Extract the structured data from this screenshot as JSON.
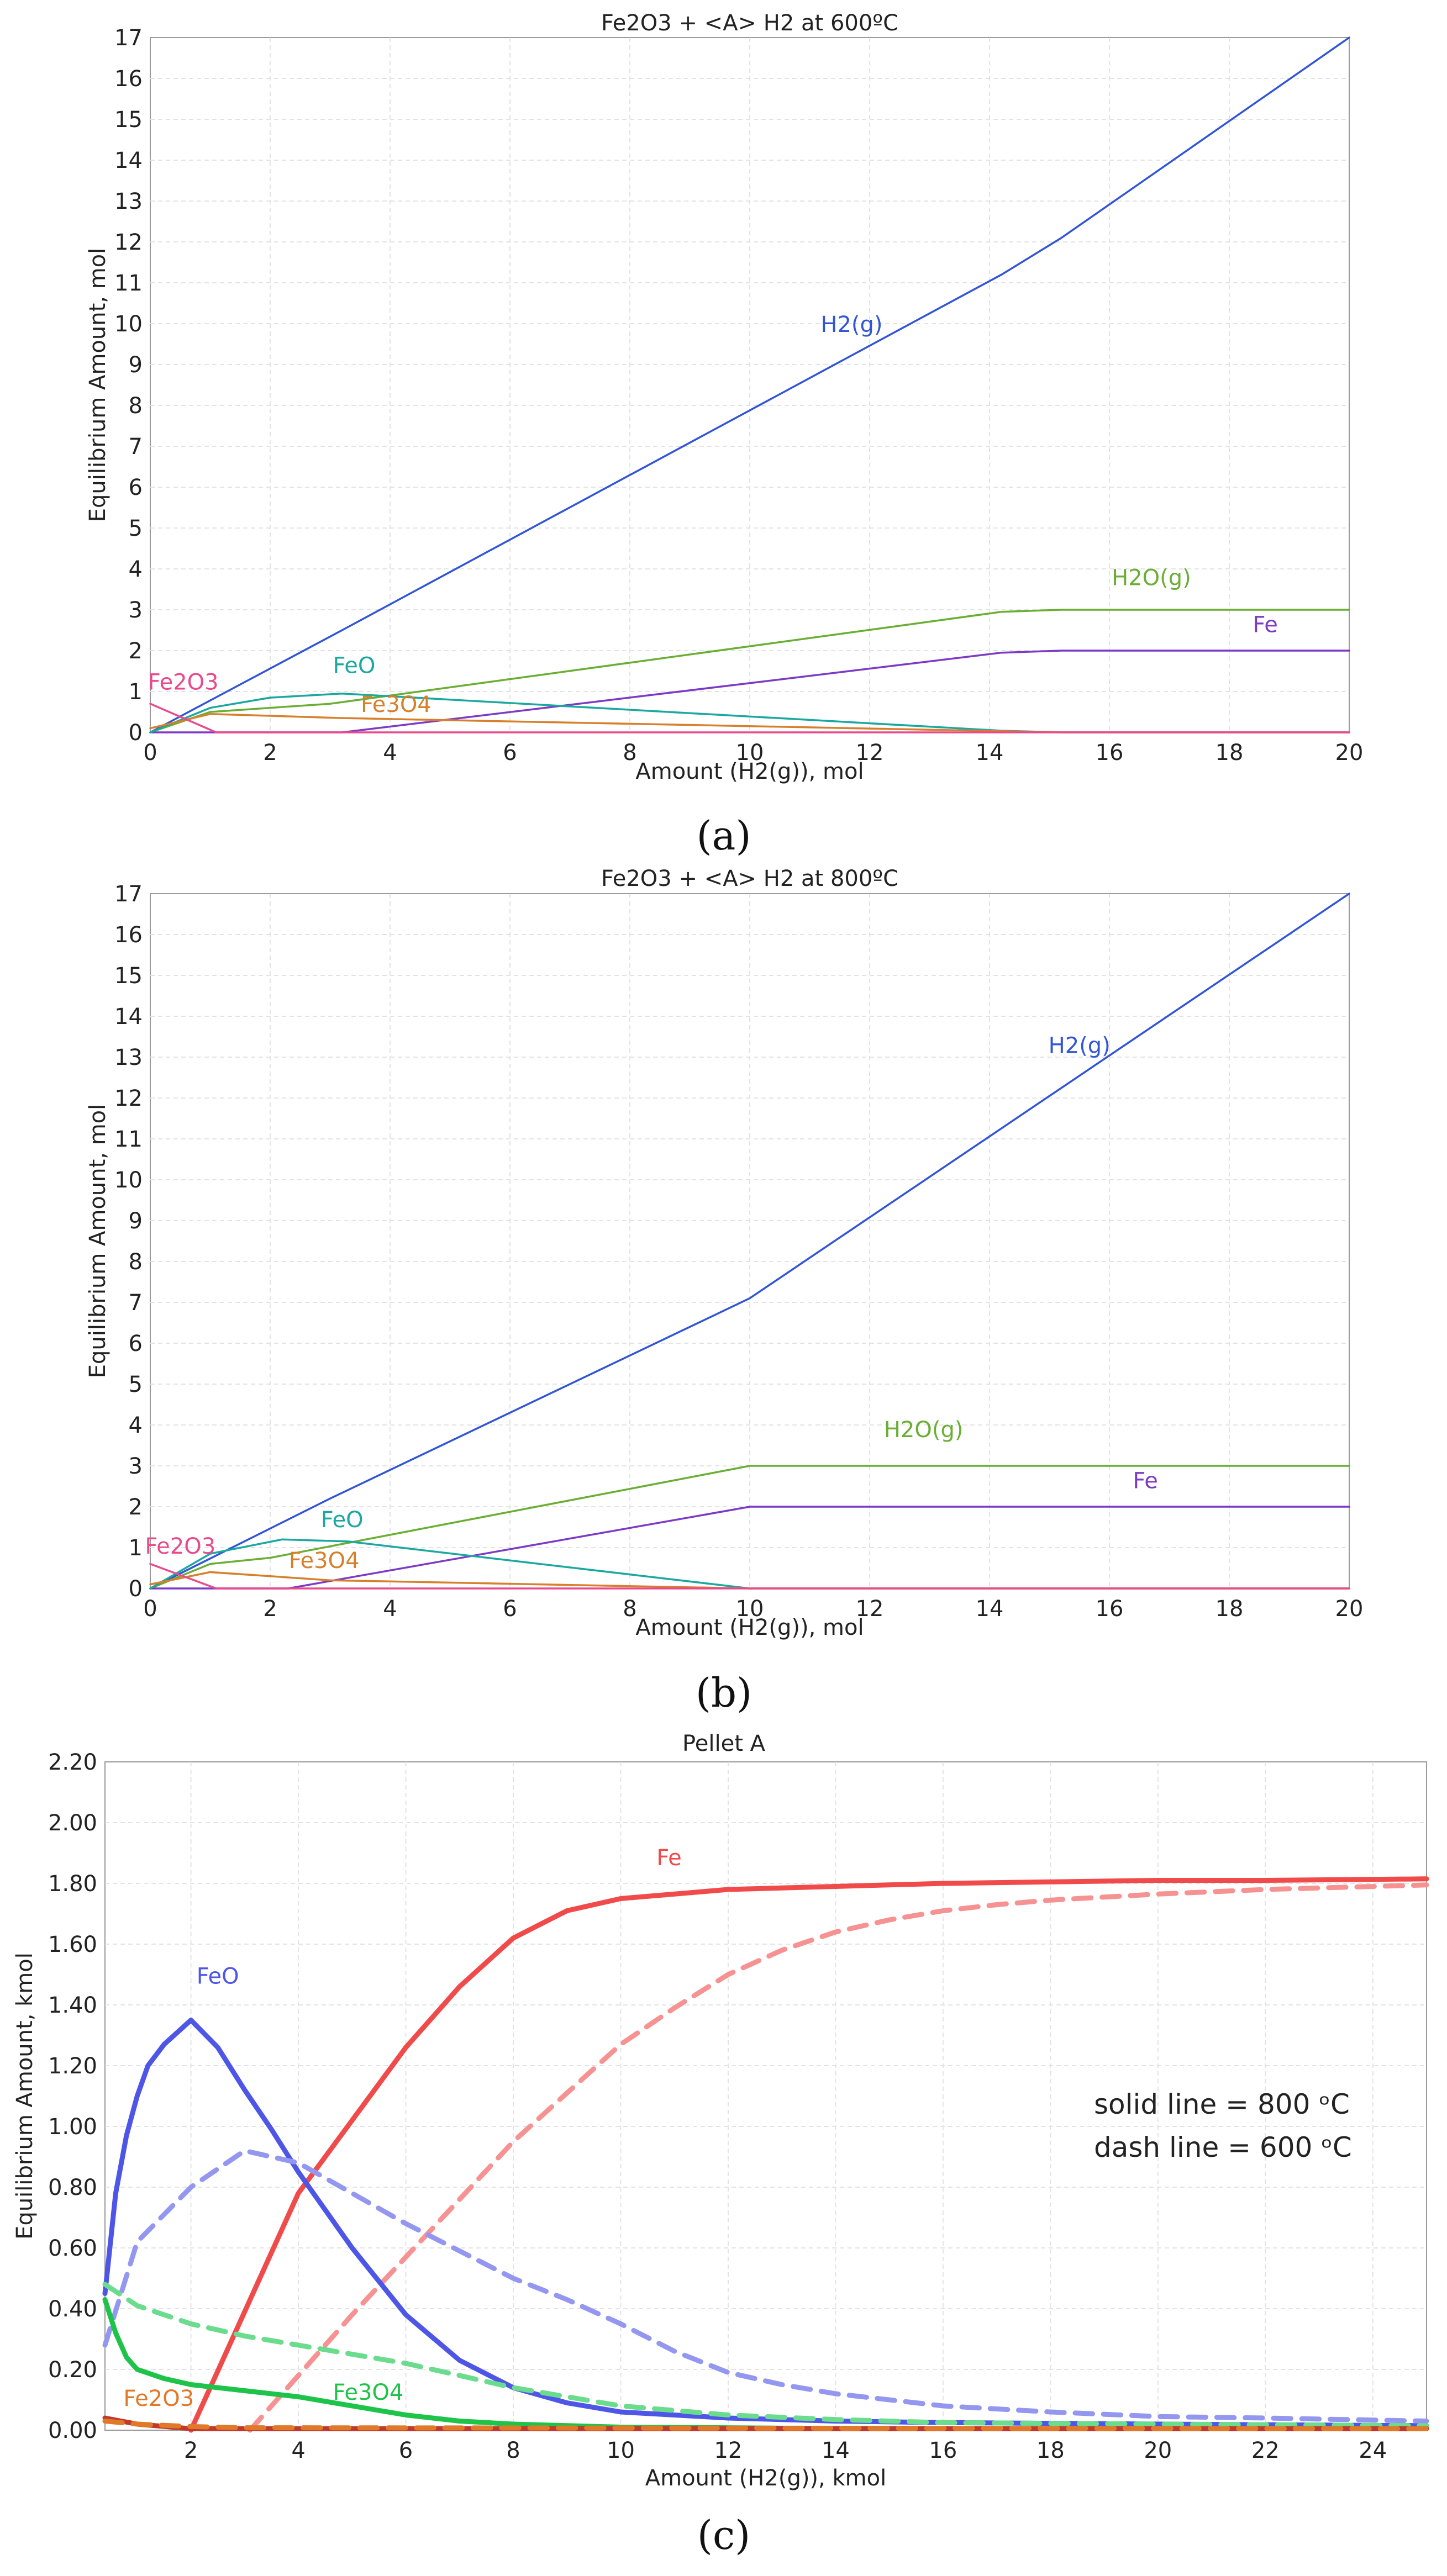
{
  "chart_data": [
    {
      "type": "line",
      "caption": "(a)",
      "title": "Fe2O3 + <A> H2 at 600ºC",
      "xlabel": "Amount (H2(g)), mol",
      "ylabel": "Equilibrium Amount, mol",
      "xlim": [
        0,
        20
      ],
      "ylim": [
        0,
        17
      ],
      "xticks": [
        0,
        2,
        4,
        6,
        8,
        10,
        12,
        14,
        16,
        18,
        20
      ],
      "yticks": [
        0,
        1,
        2,
        3,
        4,
        5,
        6,
        7,
        8,
        9,
        10,
        11,
        12,
        13,
        14,
        15,
        16,
        17
      ],
      "grid": true,
      "series": [
        {
          "name": "H2(g)",
          "color": "#3155d6",
          "style": "solid",
          "x": [
            0,
            3.2,
            14.2,
            15.2,
            20
          ],
          "y": [
            0,
            2.5,
            11.2,
            12.1,
            17
          ]
        },
        {
          "name": "H2O(g)",
          "color": "#6aae33",
          "style": "solid",
          "x": [
            0,
            1,
            3,
            14.2,
            15.2,
            20
          ],
          "y": [
            0,
            0.5,
            0.7,
            2.95,
            3,
            3
          ]
        },
        {
          "name": "Fe",
          "color": "#7d3ac5",
          "style": "solid",
          "x": [
            0,
            3.2,
            14.2,
            15.2,
            20
          ],
          "y": [
            0,
            0,
            1.95,
            2,
            2
          ]
        },
        {
          "name": "FeO",
          "color": "#1aa8a0",
          "style": "solid",
          "x": [
            0,
            1,
            2,
            3.2,
            14.2,
            15.2,
            20
          ],
          "y": [
            0,
            0.6,
            0.85,
            0.95,
            0.04,
            0,
            0
          ]
        },
        {
          "name": "Fe3O4",
          "color": "#d7802b",
          "style": "solid",
          "x": [
            0,
            1,
            3.2,
            14.2,
            15.2,
            20
          ],
          "y": [
            0.1,
            0.45,
            0.35,
            0.03,
            0,
            0
          ]
        },
        {
          "name": "Fe2O3",
          "color": "#e84a8c",
          "style": "solid",
          "x": [
            0,
            1.1,
            20
          ],
          "y": [
            0.7,
            0,
            0
          ]
        }
      ],
      "labels": [
        {
          "text": "H2(g)",
          "x": 11.7,
          "y": 9.8
        },
        {
          "text": "H2O(g)",
          "x": 16.7,
          "y": 3.6
        },
        {
          "text": "Fe",
          "x": 18.6,
          "y": 2.45
        },
        {
          "text": "FeO",
          "x": 3.4,
          "y": 1.45
        },
        {
          "text": "Fe3O4",
          "x": 4.1,
          "y": 0.5
        },
        {
          "text": "Fe2O3",
          "x": 0.55,
          "y": 1.05
        }
      ]
    },
    {
      "type": "line",
      "caption": "(b)",
      "title": "Fe2O3 + <A> H2 at 800ºC",
      "xlabel": "Amount (H2(g)), mol",
      "ylabel": "Equilibrium Amount, mol",
      "xlim": [
        0,
        20
      ],
      "ylim": [
        0,
        17
      ],
      "xticks": [
        0,
        2,
        4,
        6,
        8,
        10,
        12,
        14,
        16,
        18,
        20
      ],
      "yticks": [
        0,
        1,
        2,
        3,
        4,
        5,
        6,
        7,
        8,
        9,
        10,
        11,
        12,
        13,
        14,
        15,
        16,
        17
      ],
      "grid": true,
      "series": [
        {
          "name": "H2(g)",
          "color": "#3155d6",
          "style": "solid",
          "x": [
            0,
            3,
            10,
            20
          ],
          "y": [
            0,
            2.2,
            7.1,
            17
          ]
        },
        {
          "name": "H2O(g)",
          "color": "#6aae33",
          "style": "solid",
          "x": [
            0,
            1,
            2,
            10,
            20
          ],
          "y": [
            0,
            0.6,
            0.75,
            3,
            3
          ]
        },
        {
          "name": "Fe",
          "color": "#7d3ac5",
          "style": "solid",
          "x": [
            0,
            2.3,
            10,
            20
          ],
          "y": [
            0,
            0,
            2,
            2
          ]
        },
        {
          "name": "FeO",
          "color": "#1aa8a0",
          "style": "solid",
          "x": [
            0,
            1,
            2.2,
            3.3,
            10,
            20
          ],
          "y": [
            0,
            0.85,
            1.2,
            1.15,
            0,
            0
          ]
        },
        {
          "name": "Fe3O4",
          "color": "#d7802b",
          "style": "solid",
          "x": [
            0,
            1,
            3,
            10,
            20
          ],
          "y": [
            0.1,
            0.4,
            0.2,
            0,
            0
          ]
        },
        {
          "name": "Fe2O3",
          "color": "#e84a8c",
          "style": "solid",
          "x": [
            0,
            1.1,
            20
          ],
          "y": [
            0.6,
            0,
            0
          ]
        }
      ],
      "labels": [
        {
          "text": "H2(g)",
          "x": 15.5,
          "y": 13.1
        },
        {
          "text": "H2O(g)",
          "x": 12.9,
          "y": 3.7
        },
        {
          "text": "Fe",
          "x": 16.6,
          "y": 2.45
        },
        {
          "text": "FeO",
          "x": 3.2,
          "y": 1.5
        },
        {
          "text": "Fe3O4",
          "x": 2.9,
          "y": 0.5
        },
        {
          "text": "Fe2O3",
          "x": 0.5,
          "y": 0.85
        }
      ]
    },
    {
      "type": "line",
      "caption": "(c)",
      "title": "Pellet A",
      "xlabel": "Amount (H2(g)), kmol",
      "ylabel": "Equilibrium Amount, kmol",
      "xlim": [
        0.4,
        25
      ],
      "ylim": [
        0,
        2.2
      ],
      "xticks": [
        2,
        4,
        6,
        8,
        10,
        12,
        14,
        16,
        18,
        20,
        22,
        24
      ],
      "yticks": [
        0,
        0.2,
        0.4,
        0.6,
        0.8,
        1.0,
        1.2,
        1.4,
        1.6,
        1.8,
        2.0,
        2.2
      ],
      "ytick_labels": [
        "0.00",
        "0.20",
        "0.40",
        "0.60",
        "0.80",
        "1.00",
        "1.20",
        "1.40",
        "1.60",
        "1.80",
        "2.00",
        "2.20"
      ],
      "grid": true,
      "series": [
        {
          "name": "Fe (800 °C)",
          "color": "#f04a4a",
          "style": "solid",
          "x": [
            2,
            3,
            4,
            5,
            6,
            7,
            8,
            9,
            10,
            12,
            14,
            16,
            18,
            20,
            22,
            25
          ],
          "y": [
            0,
            0.39,
            0.78,
            1.02,
            1.26,
            1.46,
            1.62,
            1.71,
            1.75,
            1.78,
            1.79,
            1.8,
            1.805,
            1.81,
            1.81,
            1.815
          ]
        },
        {
          "name": "Fe (600 °C)",
          "color": "#f79292",
          "style": "dashed",
          "x": [
            3.1,
            5,
            6,
            7,
            8,
            9,
            10,
            11,
            12,
            13,
            14,
            15,
            16,
            17,
            18,
            20,
            22,
            25
          ],
          "y": [
            0,
            0.38,
            0.57,
            0.76,
            0.95,
            1.11,
            1.27,
            1.39,
            1.5,
            1.58,
            1.64,
            1.68,
            1.71,
            1.73,
            1.745,
            1.765,
            1.78,
            1.795
          ]
        },
        {
          "name": "FeO (800 °C)",
          "color": "#4d56e6",
          "style": "solid",
          "x": [
            0.4,
            0.6,
            0.8,
            1,
            1.2,
            1.5,
            2,
            2.5,
            3,
            3.5,
            4,
            5,
            6,
            7,
            8,
            9,
            10,
            12,
            14,
            16,
            20,
            25
          ],
          "y": [
            0.45,
            0.78,
            0.97,
            1.1,
            1.2,
            1.27,
            1.35,
            1.26,
            1.12,
            0.99,
            0.85,
            0.6,
            0.38,
            0.23,
            0.14,
            0.09,
            0.06,
            0.04,
            0.03,
            0.025,
            0.02,
            0.015
          ]
        },
        {
          "name": "FeO (600 °C)",
          "color": "#9497f0",
          "style": "dashed",
          "x": [
            0.4,
            1,
            2,
            3,
            4,
            5,
            6,
            7,
            8,
            9,
            10,
            11,
            12,
            13,
            14,
            16,
            18,
            20,
            22,
            25
          ],
          "y": [
            0.28,
            0.62,
            0.8,
            0.92,
            0.88,
            0.78,
            0.68,
            0.59,
            0.5,
            0.43,
            0.35,
            0.26,
            0.19,
            0.15,
            0.12,
            0.08,
            0.06,
            0.045,
            0.04,
            0.03
          ]
        },
        {
          "name": "Fe3O4 (800 °C)",
          "color": "#1ec34a",
          "style": "solid",
          "x": [
            0.4,
            0.6,
            0.8,
            1,
            1.5,
            2,
            3,
            4,
            5,
            6,
            7,
            8,
            9,
            10,
            12,
            14,
            20,
            25
          ],
          "y": [
            0.43,
            0.32,
            0.24,
            0.2,
            0.17,
            0.15,
            0.13,
            0.11,
            0.08,
            0.05,
            0.03,
            0.02,
            0.015,
            0.01,
            0.008,
            0.005,
            0.005,
            0.005
          ]
        },
        {
          "name": "Fe3O4 (600 °C)",
          "color": "#6bdb8d",
          "style": "dashed",
          "x": [
            0.4,
            1,
            2,
            3,
            4,
            5,
            6,
            7,
            8,
            10,
            12,
            14,
            16,
            20,
            25
          ],
          "y": [
            0.48,
            0.41,
            0.35,
            0.31,
            0.28,
            0.25,
            0.22,
            0.18,
            0.14,
            0.08,
            0.05,
            0.035,
            0.025,
            0.02,
            0.015
          ]
        },
        {
          "name": "Fe2O3 (800 °C)",
          "color": "#c0392b",
          "style": "solid",
          "x": [
            0.4,
            1,
            2,
            25
          ],
          "y": [
            0.04,
            0.02,
            0.005,
            0.005
          ]
        },
        {
          "name": "Fe2O3 (600 °C)",
          "color": "#e07a2a",
          "style": "dashed",
          "x": [
            0.4,
            1,
            2,
            3,
            25
          ],
          "y": [
            0.03,
            0.02,
            0.012,
            0.008,
            0.005
          ]
        }
      ],
      "labels": [
        {
          "text": "Fe",
          "x": 10.9,
          "y": 1.86,
          "color": "#f04a4a"
        },
        {
          "text": "FeO",
          "x": 2.5,
          "y": 1.47,
          "color": "#4d56e6"
        },
        {
          "text": "Fe3O4",
          "x": 5.3,
          "y": 0.1,
          "color": "#1ec34a"
        },
        {
          "text": "Fe2O3",
          "x": 1.4,
          "y": 0.08,
          "color": "#e07a2a"
        }
      ],
      "annotations": [
        "solid line = 800 ᵒC",
        "dash line = 600 ᵒC"
      ]
    }
  ]
}
